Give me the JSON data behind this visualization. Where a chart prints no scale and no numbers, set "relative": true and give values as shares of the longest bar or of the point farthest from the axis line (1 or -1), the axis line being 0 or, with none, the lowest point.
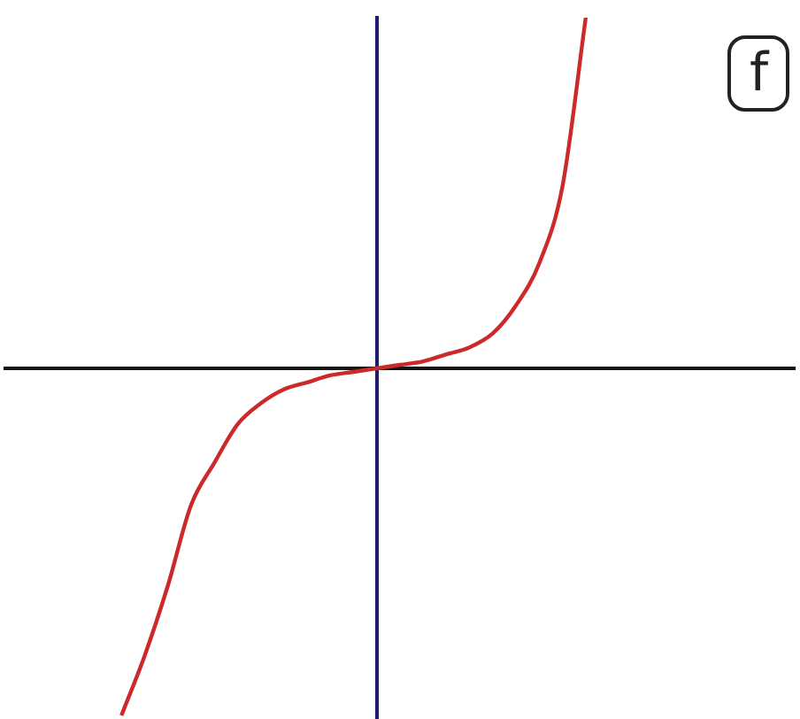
{
  "chart_data": {
    "type": "line",
    "relative": true,
    "grid": false,
    "categories": [
      null,
      null,
      null,
      null,
      null,
      null,
      null,
      null,
      null,
      null,
      null,
      null,
      null,
      null,
      null,
      null,
      null,
      null,
      null,
      null,
      null,
      null,
      null,
      null,
      null,
      null,
      null,
      null,
      null,
      null,
      null,
      null,
      null,
      null,
      null
    ],
    "series": [
      {
        "name": "f",
        "color": "#cc2a2a",
        "values": [
          null,
          null,
          null,
          null,
          null,
          -0.99,
          -0.82,
          -0.62,
          -0.39,
          -0.27,
          -0.16,
          -0.1,
          -0.06,
          -0.04,
          -0.02,
          -0.01,
          0,
          0.01,
          0.02,
          0.04,
          0.06,
          0.1,
          0.18,
          0.3,
          0.52,
          1,
          null,
          null,
          null,
          null,
          null,
          null,
          null,
          null,
          null
        ]
      }
    ]
  }
}
